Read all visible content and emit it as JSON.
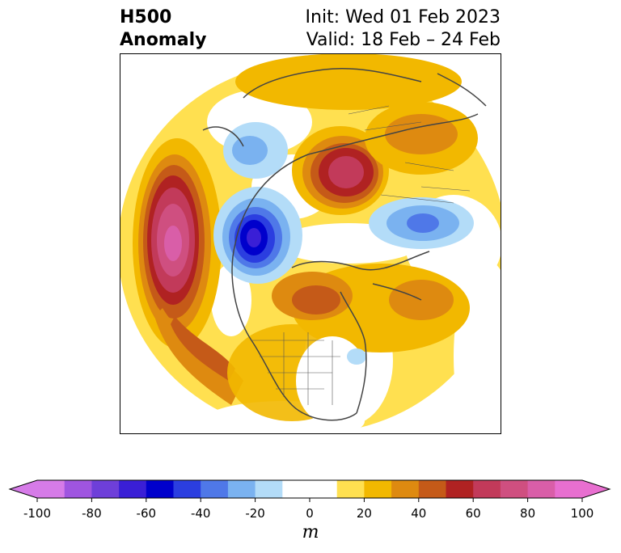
{
  "title": {
    "left_line1": "H500",
    "left_line2": "Anomaly",
    "right_line1": "Init: Wed 01 Feb 2023",
    "right_line2": "Valid: 18 Feb – 24 Feb"
  },
  "colorbar": {
    "unit": "m",
    "levels": [
      -100,
      -90,
      -80,
      -70,
      -60,
      -50,
      -40,
      -30,
      -20,
      -10,
      10,
      20,
      30,
      40,
      50,
      60,
      70,
      80,
      90,
      100
    ],
    "colors": [
      "#d67be8",
      "#9f55e0",
      "#6e3fd9",
      "#3a1fd6",
      "#0000cc",
      "#2b3ee0",
      "#4f78e8",
      "#7ab2f0",
      "#b3dcf8",
      "#ffffff",
      "#ffe050",
      "#f2b800",
      "#de8a10",
      "#c55a18",
      "#b02222",
      "#c23a5a",
      "#cf4f80",
      "#d95ea8",
      "#e86fd0"
    ],
    "tick_labels": [
      "-100",
      "-80",
      "-60",
      "-40",
      "-20",
      "0",
      "20",
      "40",
      "60",
      "80",
      "100"
    ]
  },
  "map": {
    "projection": "north-polar-stereographic",
    "field": "500 hPa geopotential height anomaly"
  }
}
